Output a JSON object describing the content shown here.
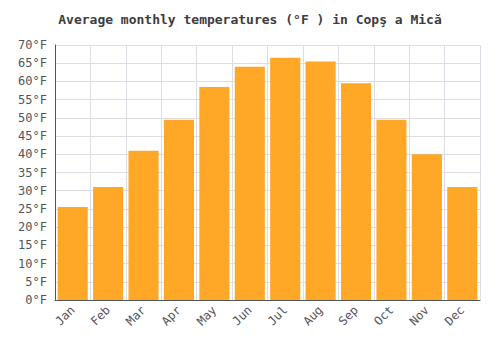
{
  "chart_data": {
    "type": "bar",
    "title": "Average monthly temperatures (°F ) in Copş a Mică",
    "categories": [
      "Jan",
      "Feb",
      "Mar",
      "Apr",
      "May",
      "Jun",
      "Jul",
      "Aug",
      "Sep",
      "Oct",
      "Nov",
      "Dec"
    ],
    "values": [
      25.5,
      31.0,
      41.0,
      49.5,
      58.5,
      64.0,
      66.5,
      65.5,
      59.5,
      49.5,
      40.0,
      31.0
    ],
    "color": "#FFA726",
    "ylim": [
      0,
      70
    ],
    "yticks": [
      {
        "value": 0,
        "label": "0°F"
      },
      {
        "value": 5,
        "label": "5°F"
      },
      {
        "value": 10,
        "label": "10°F"
      },
      {
        "value": 15,
        "label": "15°F"
      },
      {
        "value": 20,
        "label": "20°F"
      },
      {
        "value": 25,
        "label": "25°F"
      },
      {
        "value": 30,
        "label": "30°F"
      },
      {
        "value": 35,
        "label": "35°F"
      },
      {
        "value": 40,
        "label": "40°F"
      },
      {
        "value": 45,
        "label": "45°F"
      },
      {
        "value": 50,
        "label": "50°F"
      },
      {
        "value": 55,
        "label": "55°F"
      },
      {
        "value": 60,
        "label": "60°F"
      },
      {
        "value": 65,
        "label": "65°F"
      },
      {
        "value": 70,
        "label": "70°F"
      }
    ],
    "grid": true
  }
}
